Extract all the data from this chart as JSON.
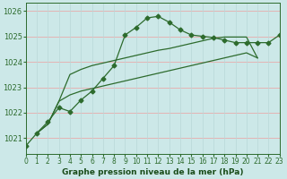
{
  "background_color": "#cce8e8",
  "grid_color_h": "#e8aaaa",
  "grid_color_v": "#b8d8d8",
  "line_color": "#2d6b2d",
  "xlabel": "Graphe pression niveau de la mer (hPa)",
  "xlabel_color": "#1a4d1a",
  "ylabel_ticks": [
    1021,
    1022,
    1023,
    1024,
    1025,
    1026
  ],
  "xtick_labels": [
    "0",
    "1",
    "2",
    "3",
    "4",
    "5",
    "6",
    "7",
    "8",
    "9",
    "10",
    "11",
    "12",
    "13",
    "14",
    "15",
    "16",
    "17",
    "18",
    "19",
    "20",
    "21",
    "2223"
  ],
  "ylim": [
    1020.4,
    1026.3
  ],
  "xlim": [
    0,
    23
  ],
  "series_main": [
    1020.7,
    1021.2,
    1021.65,
    1022.2,
    1022.05,
    1022.5,
    1022.85,
    1023.35,
    1023.85,
    1025.05,
    1025.35,
    1025.72,
    1025.78,
    1025.55,
    1025.25,
    1025.05,
    1025.0,
    1024.95,
    1024.85,
    1024.75,
    1024.75,
    1024.75,
    1024.75,
    1025.05
  ],
  "series_straight1": [
    1021.2,
    1021.55,
    1022.45,
    1022.7,
    1022.85,
    1022.95,
    1023.05,
    1023.15,
    1023.25,
    1023.35,
    1023.45,
    1023.55,
    1023.65,
    1023.75,
    1023.85,
    1023.95,
    1024.05,
    1024.15,
    1024.25,
    1024.35,
    1024.15
  ],
  "series_straight2": [
    1021.2,
    1021.55,
    1022.45,
    1023.5,
    1023.7,
    1023.85,
    1023.95,
    1024.05,
    1024.15,
    1024.25,
    1024.35,
    1024.45,
    1024.52,
    1024.62,
    1024.72,
    1024.82,
    1024.92,
    1024.97,
    1024.97,
    1024.97,
    1024.15
  ],
  "line_width": 0.9,
  "marker": "D",
  "marker_size": 2.5,
  "tick_fontsize": 5.5,
  "xlabel_fontsize": 6.5
}
